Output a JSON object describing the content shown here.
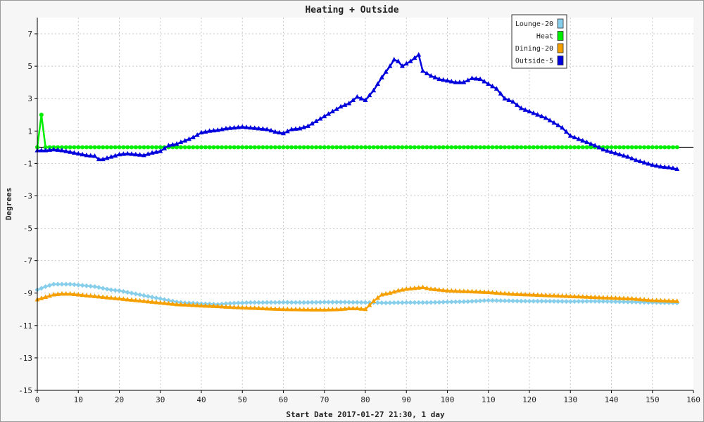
{
  "chart_data": {
    "type": "line",
    "title": "Heating + Outside",
    "xlabel": "Start Date 2017-01-27 21:30, 1 day",
    "ylabel": "Degrees",
    "xlim": [
      0,
      160
    ],
    "ylim": [
      -15,
      8
    ],
    "xticks": [
      0,
      10,
      20,
      30,
      40,
      50,
      60,
      70,
      80,
      90,
      100,
      110,
      120,
      130,
      140,
      150,
      160
    ],
    "yticks": [
      7,
      5,
      3,
      1,
      -1,
      -3,
      -5,
      -7,
      -9,
      -11,
      -13,
      -15
    ],
    "grid": true,
    "legend_position": "top-right",
    "series": [
      {
        "name": "Lounge-20",
        "color": "#87ceeb",
        "marker": "diamond",
        "points": [
          [
            0,
            -8.8
          ],
          [
            2,
            -8.6
          ],
          [
            4,
            -8.45
          ],
          [
            6,
            -8.45
          ],
          [
            8,
            -8.45
          ],
          [
            10,
            -8.5
          ],
          [
            12,
            -8.55
          ],
          [
            14,
            -8.6
          ],
          [
            16,
            -8.7
          ],
          [
            18,
            -8.8
          ],
          [
            20,
            -8.85
          ],
          [
            22,
            -8.95
          ],
          [
            24,
            -9.05
          ],
          [
            26,
            -9.15
          ],
          [
            28,
            -9.25
          ],
          [
            30,
            -9.35
          ],
          [
            32,
            -9.45
          ],
          [
            34,
            -9.55
          ],
          [
            36,
            -9.6
          ],
          [
            38,
            -9.62
          ],
          [
            40,
            -9.65
          ],
          [
            42,
            -9.67
          ],
          [
            44,
            -9.7
          ],
          [
            46,
            -9.65
          ],
          [
            48,
            -9.62
          ],
          [
            50,
            -9.6
          ],
          [
            52,
            -9.58
          ],
          [
            55,
            -9.58
          ],
          [
            60,
            -9.57
          ],
          [
            65,
            -9.58
          ],
          [
            70,
            -9.56
          ],
          [
            75,
            -9.56
          ],
          [
            80,
            -9.58
          ],
          [
            85,
            -9.6
          ],
          [
            90,
            -9.58
          ],
          [
            95,
            -9.58
          ],
          [
            100,
            -9.55
          ],
          [
            105,
            -9.52
          ],
          [
            110,
            -9.45
          ],
          [
            115,
            -9.48
          ],
          [
            120,
            -9.5
          ],
          [
            125,
            -9.5
          ],
          [
            130,
            -9.52
          ],
          [
            135,
            -9.5
          ],
          [
            140,
            -9.52
          ],
          [
            145,
            -9.55
          ],
          [
            150,
            -9.58
          ],
          [
            156,
            -9.6
          ]
        ]
      },
      {
        "name": "Heat",
        "color": "#00ee00",
        "marker": "circle",
        "points": [
          [
            0,
            0
          ],
          [
            1,
            2.0
          ],
          [
            2,
            0
          ],
          [
            156,
            0
          ]
        ]
      },
      {
        "name": "Dining-20",
        "color": "#f5a000",
        "marker": "triangle",
        "points": [
          [
            0,
            -9.4
          ],
          [
            2,
            -9.25
          ],
          [
            4,
            -9.1
          ],
          [
            6,
            -9.05
          ],
          [
            8,
            -9.05
          ],
          [
            10,
            -9.1
          ],
          [
            12,
            -9.15
          ],
          [
            14,
            -9.2
          ],
          [
            16,
            -9.25
          ],
          [
            18,
            -9.3
          ],
          [
            20,
            -9.35
          ],
          [
            22,
            -9.4
          ],
          [
            24,
            -9.45
          ],
          [
            26,
            -9.5
          ],
          [
            28,
            -9.55
          ],
          [
            30,
            -9.6
          ],
          [
            32,
            -9.65
          ],
          [
            34,
            -9.7
          ],
          [
            36,
            -9.72
          ],
          [
            38,
            -9.75
          ],
          [
            40,
            -9.78
          ],
          [
            42,
            -9.8
          ],
          [
            44,
            -9.82
          ],
          [
            46,
            -9.85
          ],
          [
            48,
            -9.88
          ],
          [
            50,
            -9.9
          ],
          [
            52,
            -9.92
          ],
          [
            55,
            -9.95
          ],
          [
            58,
            -9.98
          ],
          [
            60,
            -10.0
          ],
          [
            65,
            -10.02
          ],
          [
            70,
            -10.03
          ],
          [
            74,
            -10.0
          ],
          [
            76,
            -9.95
          ],
          [
            78,
            -9.95
          ],
          [
            80,
            -10.0
          ],
          [
            82,
            -9.5
          ],
          [
            84,
            -9.1
          ],
          [
            86,
            -9.0
          ],
          [
            88,
            -8.85
          ],
          [
            90,
            -8.75
          ],
          [
            92,
            -8.7
          ],
          [
            94,
            -8.65
          ],
          [
            96,
            -8.75
          ],
          [
            98,
            -8.8
          ],
          [
            100,
            -8.85
          ],
          [
            105,
            -8.9
          ],
          [
            110,
            -8.95
          ],
          [
            115,
            -9.05
          ],
          [
            120,
            -9.1
          ],
          [
            125,
            -9.15
          ],
          [
            130,
            -9.2
          ],
          [
            135,
            -9.25
          ],
          [
            140,
            -9.3
          ],
          [
            145,
            -9.35
          ],
          [
            150,
            -9.45
          ],
          [
            156,
            -9.5
          ]
        ]
      },
      {
        "name": "Outside-5",
        "color": "#0000dd",
        "marker": "triangle",
        "points": [
          [
            0,
            -0.2
          ],
          [
            2,
            -0.2
          ],
          [
            4,
            -0.15
          ],
          [
            6,
            -0.2
          ],
          [
            8,
            -0.3
          ],
          [
            10,
            -0.4
          ],
          [
            12,
            -0.5
          ],
          [
            14,
            -0.55
          ],
          [
            15,
            -0.75
          ],
          [
            16,
            -0.75
          ],
          [
            18,
            -0.6
          ],
          [
            20,
            -0.45
          ],
          [
            22,
            -0.4
          ],
          [
            24,
            -0.45
          ],
          [
            26,
            -0.5
          ],
          [
            28,
            -0.35
          ],
          [
            30,
            -0.25
          ],
          [
            32,
            0.1
          ],
          [
            34,
            0.2
          ],
          [
            36,
            0.4
          ],
          [
            38,
            0.6
          ],
          [
            40,
            0.9
          ],
          [
            42,
            1.0
          ],
          [
            44,
            1.05
          ],
          [
            46,
            1.15
          ],
          [
            48,
            1.2
          ],
          [
            50,
            1.25
          ],
          [
            52,
            1.2
          ],
          [
            54,
            1.15
          ],
          [
            56,
            1.1
          ],
          [
            58,
            0.95
          ],
          [
            60,
            0.85
          ],
          [
            62,
            1.1
          ],
          [
            64,
            1.15
          ],
          [
            66,
            1.3
          ],
          [
            68,
            1.6
          ],
          [
            70,
            1.9
          ],
          [
            72,
            2.2
          ],
          [
            74,
            2.5
          ],
          [
            76,
            2.7
          ],
          [
            78,
            3.1
          ],
          [
            80,
            2.9
          ],
          [
            82,
            3.5
          ],
          [
            84,
            4.3
          ],
          [
            86,
            5.0
          ],
          [
            87,
            5.4
          ],
          [
            88,
            5.3
          ],
          [
            89,
            5.0
          ],
          [
            91,
            5.3
          ],
          [
            92,
            5.5
          ],
          [
            93,
            5.7
          ],
          [
            94,
            4.7
          ],
          [
            96,
            4.4
          ],
          [
            98,
            4.2
          ],
          [
            100,
            4.1
          ],
          [
            102,
            4.0
          ],
          [
            104,
            4.0
          ],
          [
            106,
            4.25
          ],
          [
            108,
            4.2
          ],
          [
            110,
            3.9
          ],
          [
            112,
            3.6
          ],
          [
            114,
            3.0
          ],
          [
            116,
            2.8
          ],
          [
            118,
            2.4
          ],
          [
            120,
            2.2
          ],
          [
            122,
            2.0
          ],
          [
            124,
            1.8
          ],
          [
            126,
            1.5
          ],
          [
            128,
            1.2
          ],
          [
            130,
            0.7
          ],
          [
            132,
            0.5
          ],
          [
            134,
            0.3
          ],
          [
            136,
            0.1
          ],
          [
            138,
            -0.15
          ],
          [
            140,
            -0.3
          ],
          [
            142,
            -0.45
          ],
          [
            144,
            -0.6
          ],
          [
            146,
            -0.8
          ],
          [
            148,
            -0.95
          ],
          [
            150,
            -1.1
          ],
          [
            152,
            -1.2
          ],
          [
            154,
            -1.25
          ],
          [
            156,
            -1.35
          ]
        ]
      }
    ]
  }
}
